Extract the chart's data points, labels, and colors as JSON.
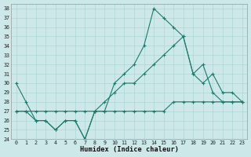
{
  "xlabel": "Humidex (Indice chaleur)",
  "bg_color": "#cde8e8",
  "line_color": "#1f7a6e",
  "grid_color": "#aed4d4",
  "xlim_min": -0.5,
  "xlim_max": 23.5,
  "ylim_min": 24,
  "ylim_max": 38.5,
  "xticks": [
    0,
    1,
    2,
    3,
    4,
    5,
    6,
    7,
    8,
    9,
    10,
    11,
    12,
    13,
    14,
    15,
    16,
    17,
    18,
    19,
    20,
    21,
    22,
    23
  ],
  "yticks": [
    24,
    25,
    26,
    27,
    28,
    29,
    30,
    31,
    32,
    33,
    34,
    35,
    36,
    37,
    38
  ],
  "top_x": [
    0,
    1,
    2,
    3,
    4,
    5,
    6,
    7,
    8,
    9,
    10,
    11,
    12,
    13,
    14,
    15,
    16,
    17,
    18,
    19,
    20,
    21,
    22,
    23
  ],
  "top_y": [
    30,
    28,
    26,
    26,
    25,
    26,
    26,
    24,
    27,
    27,
    30,
    31,
    32,
    34,
    38,
    37,
    36,
    35,
    31,
    32,
    29,
    28,
    28,
    28
  ],
  "mid_x": [
    0,
    1,
    2,
    3,
    4,
    5,
    6,
    7,
    8,
    9,
    10,
    11,
    12,
    13,
    14,
    15,
    16,
    17,
    18,
    19,
    20,
    21,
    22,
    23
  ],
  "mid_y": [
    27,
    27,
    27,
    27,
    27,
    27,
    27,
    27,
    27,
    28,
    29,
    30,
    30,
    31,
    32,
    33,
    34,
    35,
    31,
    30,
    31,
    29,
    29,
    28
  ],
  "bot_x": [
    0,
    1,
    2,
    3,
    4,
    5,
    6,
    7,
    8,
    9,
    10,
    11,
    12,
    13,
    14,
    15,
    16,
    17,
    18,
    19,
    20,
    21,
    22,
    23
  ],
  "bot_y": [
    27,
    27,
    26,
    26,
    25,
    26,
    26,
    24,
    27,
    27,
    27,
    27,
    27,
    27,
    27,
    27,
    28,
    28,
    28,
    28,
    28,
    28,
    28,
    28
  ]
}
